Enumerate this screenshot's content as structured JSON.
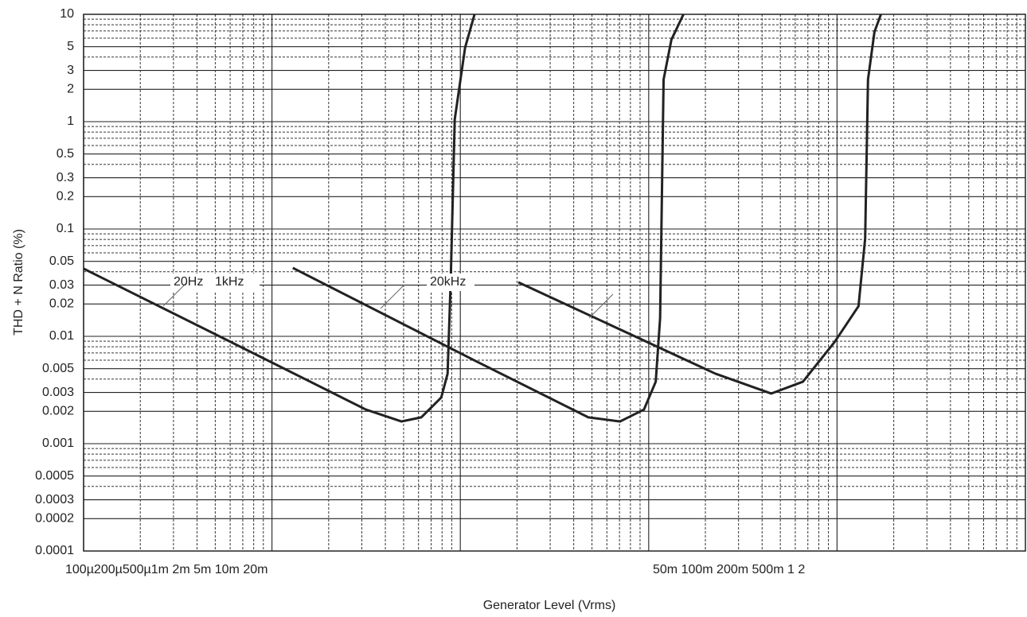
{
  "chart_data": {
    "type": "line",
    "x_label": "Generator Level (Vrms)",
    "y_label": "THD + N Ratio (%)",
    "x_tick_labels": [
      "100µ200µ500µ1m 2m 5m 10m 20m",
      "50m 100m 200m 500m 1 2"
    ],
    "log_x": true,
    "log_y": true,
    "grid": true,
    "xlim": [
      0.0001,
      10
    ],
    "ylim": [
      0.0001,
      10
    ],
    "yticks": [
      10,
      5,
      3,
      2,
      1,
      0.5,
      0.3,
      0.2,
      0.1,
      0.05,
      0.03,
      0.02,
      0.01,
      0.005,
      0.003,
      0.002,
      0.001,
      0.0005,
      0.0003,
      0.0002,
      0.0001
    ],
    "series": [
      {
        "name": "20Hz",
        "color": "#222222",
        "x": [
          0.0001,
          0.000665,
          0.00315,
          0.00487,
          0.00621,
          0.00792,
          0.00856,
          0.0089,
          0.00934,
          0.0106,
          0.0119
        ],
        "values": [
          0.0427,
          0.00815,
          0.00208,
          0.00161,
          0.00176,
          0.00269,
          0.00449,
          0.0348,
          1.05,
          4.89,
          10
        ]
      },
      {
        "name": "1kHz",
        "color": "#222222",
        "x": [
          0.00129,
          0.0123,
          0.0478,
          0.0705,
          0.0944,
          0.109,
          0.115,
          0.12,
          0.132,
          0.153
        ],
        "values": [
          0.0434,
          0.00579,
          0.00176,
          0.00161,
          0.00208,
          0.00378,
          0.0148,
          2.47,
          5.8,
          10
        ]
      },
      {
        "name": "20kHz",
        "color": "#222222",
        "x": [
          0.0203,
          0.226,
          0.447,
          0.659,
          0.971,
          1.3,
          1.41,
          1.46,
          1.58,
          1.71
        ],
        "values": [
          0.0319,
          0.00449,
          0.00293,
          0.00378,
          0.00887,
          0.0191,
          0.0815,
          2.47,
          6.87,
          10
        ]
      }
    ]
  }
}
